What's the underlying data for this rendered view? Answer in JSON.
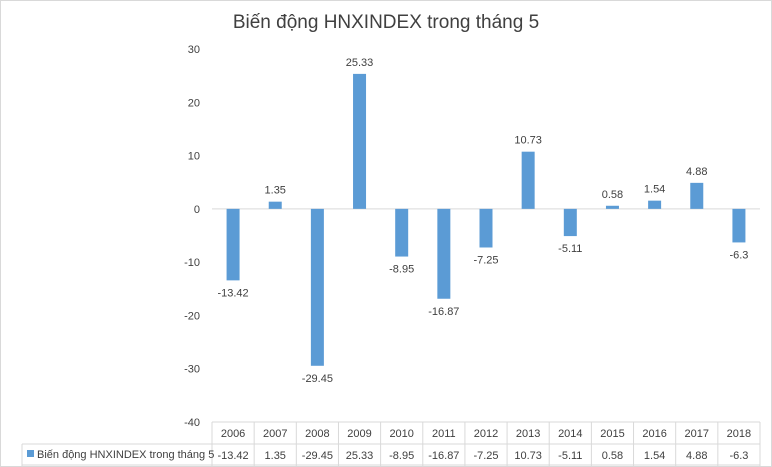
{
  "chart_data": {
    "type": "bar",
    "title": "Biến động HNXINDEX trong tháng 5",
    "categories": [
      "2006",
      "2007",
      "2008",
      "2009",
      "2010",
      "2011",
      "2012",
      "2013",
      "2014",
      "2015",
      "2016",
      "2017",
      "2018"
    ],
    "series": [
      {
        "name": "Biến động HNXINDEX trong tháng 5",
        "values": [
          -13.42,
          1.35,
          -29.45,
          25.33,
          -8.95,
          -16.87,
          -7.25,
          10.73,
          -5.11,
          0.58,
          1.54,
          4.88,
          -6.3
        ],
        "labels": [
          "-13.42",
          "1.35",
          "-29.45",
          "25.33",
          "-8.95",
          "-16.87",
          "-7.25",
          "10.73",
          "-5.11",
          "0.58",
          "1.54",
          "4.88",
          "-6.3"
        ]
      }
    ],
    "ylim": [
      -40,
      30
    ],
    "yticks": [
      30,
      20,
      10,
      0,
      -10,
      -20,
      -30,
      -40
    ],
    "grid": false,
    "data_table": true,
    "legend": "data-table",
    "bar_color": "#5b9bd5"
  }
}
